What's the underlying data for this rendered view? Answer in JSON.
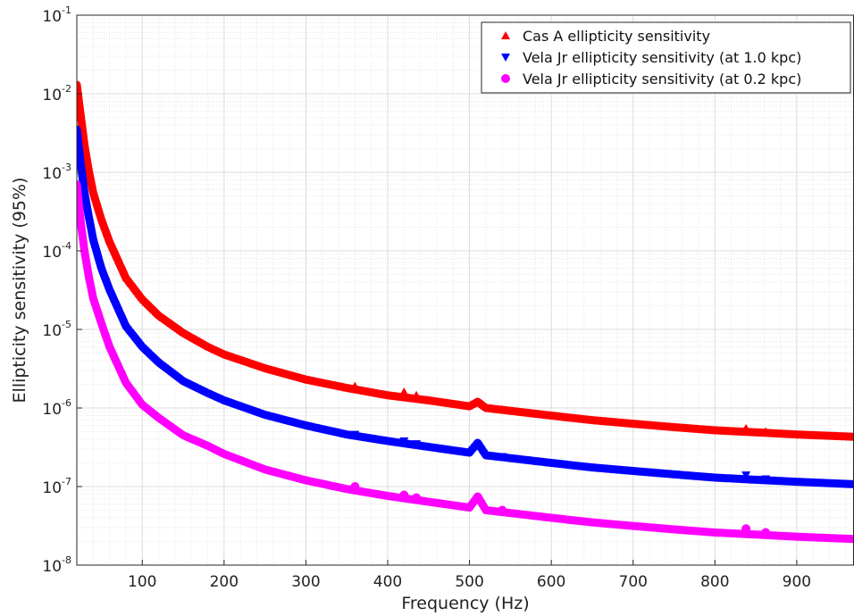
{
  "chart_data": {
    "type": "scatter",
    "title": "",
    "xlabel": "Frequency (Hz)",
    "ylabel": "Ellipticity sensitivity (95%)",
    "xlim": [
      20,
      970
    ],
    "ylim": [
      1e-08,
      0.1
    ],
    "yscale": "log",
    "grid": true,
    "minor_grid": true,
    "legend_position": "top-right",
    "x_ticks": [
      100,
      200,
      300,
      400,
      500,
      600,
      700,
      800,
      900
    ],
    "x_tick_labels": [
      "100",
      "200",
      "300",
      "400",
      "500",
      "600",
      "700",
      "800",
      "900"
    ],
    "y_ticks": [
      {
        "value": 1e-08,
        "base": "10",
        "exp": "-8"
      },
      {
        "value": 1e-07,
        "base": "10",
        "exp": "-7"
      },
      {
        "value": 1e-06,
        "base": "10",
        "exp": "-6"
      },
      {
        "value": 1e-05,
        "base": "10",
        "exp": "-5"
      },
      {
        "value": 0.0001,
        "base": "10",
        "exp": "-4"
      },
      {
        "value": 0.001,
        "base": "10",
        "exp": "-3"
      },
      {
        "value": 0.01,
        "base": "10",
        "exp": "-2"
      },
      {
        "value": 0.1,
        "base": "10",
        "exp": "-1"
      }
    ],
    "series": [
      {
        "name": "Cas A ellipticity sensitivity",
        "color": "#ff0000",
        "marker": "triangle-up",
        "x": [
          20,
          25,
          30,
          35,
          40,
          50,
          60,
          80,
          100,
          120,
          150,
          180,
          200,
          250,
          300,
          350,
          400,
          450,
          500,
          510,
          520,
          550,
          600,
          650,
          700,
          750,
          800,
          850,
          900,
          970
        ],
        "y": [
          0.013,
          0.005,
          0.002,
          0.001,
          0.00055,
          0.00025,
          0.00013,
          4.5e-05,
          2.4e-05,
          1.5e-05,
          9e-06,
          6e-06,
          4.8e-06,
          3.2e-06,
          2.3e-06,
          1.8e-06,
          1.45e-06,
          1.25e-06,
          1.05e-06,
          1.2e-06,
          1e-06,
          9.2e-07,
          8e-07,
          7e-07,
          6.3e-07,
          5.7e-07,
          5.2e-07,
          4.9e-07,
          4.6e-07,
          4.3e-07
        ],
        "spikes": [
          {
            "x": 360,
            "y": 1.9e-06
          },
          {
            "x": 420,
            "y": 1.6e-06
          },
          {
            "x": 435,
            "y": 1.45e-06
          },
          {
            "x": 540,
            "y": 9.5e-07
          },
          {
            "x": 838,
            "y": 5.5e-07
          },
          {
            "x": 862,
            "y": 5e-07
          }
        ]
      },
      {
        "name": "Vela Jr ellipticity sensitivity (at 1.0 kpc)",
        "color": "#0000ff",
        "marker": "triangle-down",
        "x": [
          20,
          25,
          30,
          35,
          40,
          50,
          60,
          80,
          100,
          120,
          150,
          180,
          200,
          250,
          300,
          350,
          400,
          450,
          500,
          510,
          520,
          550,
          600,
          650,
          700,
          750,
          800,
          850,
          900,
          970
        ],
        "y": [
          0.0035,
          0.0012,
          0.0005,
          0.00026,
          0.00014,
          6e-05,
          3.2e-05,
          1.1e-05,
          6e-06,
          3.8e-06,
          2.2e-06,
          1.55e-06,
          1.25e-06,
          8.2e-07,
          6e-07,
          4.6e-07,
          3.8e-07,
          3.2e-07,
          2.7e-07,
          3.6e-07,
          2.5e-07,
          2.3e-07,
          2e-07,
          1.75e-07,
          1.58e-07,
          1.43e-07,
          1.3e-07,
          1.22e-07,
          1.15e-07,
          1.07e-07
        ],
        "spikes": [
          {
            "x": 360,
            "y": 4.6e-07
          },
          {
            "x": 420,
            "y": 3.8e-07
          },
          {
            "x": 435,
            "y": 3.5e-07
          },
          {
            "x": 540,
            "y": 2.4e-07
          },
          {
            "x": 838,
            "y": 1.4e-07
          },
          {
            "x": 862,
            "y": 1.25e-07
          }
        ]
      },
      {
        "name": "Vela Jr ellipticity sensitivity (at 0.2 kpc)",
        "color": "#ff00ff",
        "marker": "circle",
        "x": [
          20,
          25,
          30,
          35,
          40,
          50,
          60,
          80,
          100,
          120,
          150,
          180,
          200,
          250,
          300,
          350,
          400,
          450,
          500,
          510,
          520,
          550,
          600,
          650,
          700,
          750,
          800,
          850,
          900,
          970
        ],
        "y": [
          0.0007,
          0.00022,
          9e-05,
          4.5e-05,
          2.5e-05,
          1.2e-05,
          6e-06,
          2.1e-06,
          1.1e-06,
          7.5e-07,
          4.5e-07,
          3.3e-07,
          2.6e-07,
          1.65e-07,
          1.2e-07,
          9.3e-08,
          7.6e-08,
          6.4e-08,
          5.4e-08,
          7.5e-08,
          5e-08,
          4.6e-08,
          4e-08,
          3.5e-08,
          3.15e-08,
          2.85e-08,
          2.6e-08,
          2.45e-08,
          2.3e-08,
          2.15e-08
        ],
        "spikes": [
          {
            "x": 360,
            "y": 1e-07
          },
          {
            "x": 420,
            "y": 7.8e-08
          },
          {
            "x": 435,
            "y": 7.2e-08
          },
          {
            "x": 540,
            "y": 5e-08
          },
          {
            "x": 838,
            "y": 2.9e-08
          },
          {
            "x": 862,
            "y": 2.6e-08
          }
        ]
      }
    ]
  }
}
